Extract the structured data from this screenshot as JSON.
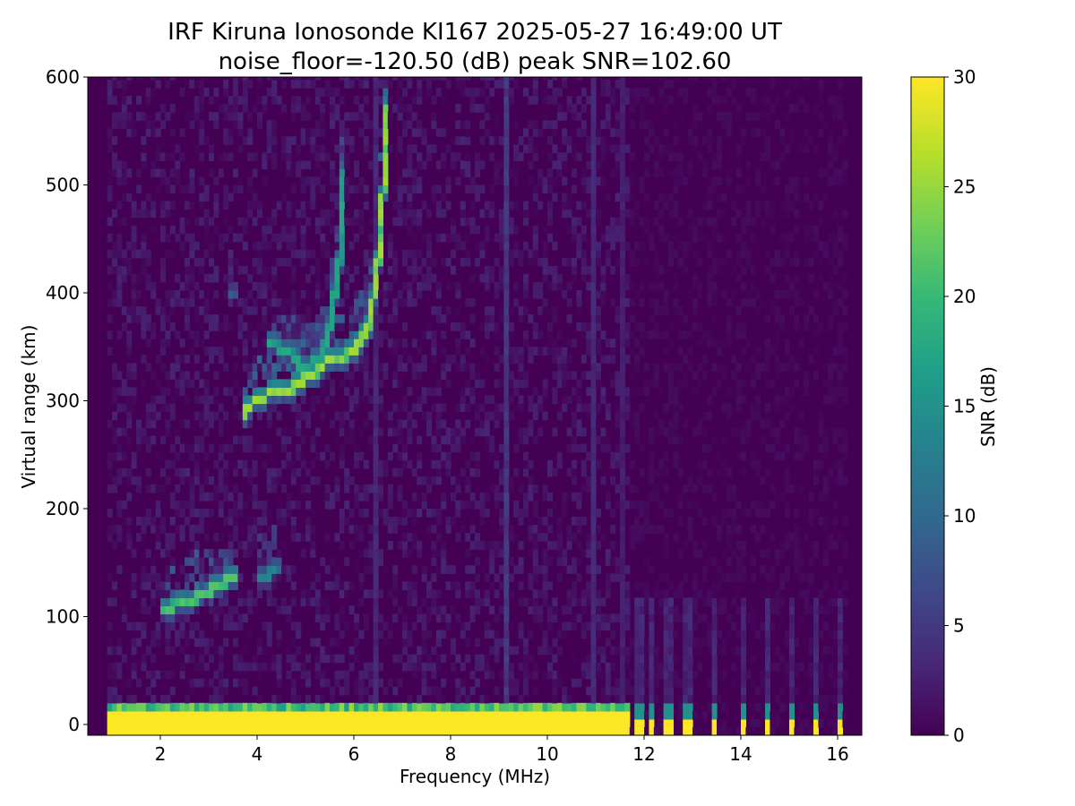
{
  "chart_data": {
    "type": "heatmap",
    "title": "IRF Kiruna Ionosonde KI167 2025-05-27 16:49:00  UT",
    "subtitle": "noise_floor=-120.50 (dB) peak SNR=102.60",
    "xlabel": "Frequency (MHz)",
    "ylabel": "Virtual range (km)",
    "xlim": [
      0.5,
      16.5
    ],
    "ylim": [
      -10,
      600
    ],
    "data_x_range": [
      0.9,
      16.2
    ],
    "x_ticks": [
      2,
      4,
      6,
      8,
      10,
      12,
      14,
      16
    ],
    "x_tick_labels": [
      "2",
      "4",
      "6",
      "8",
      "10",
      "12",
      "14",
      "16"
    ],
    "y_ticks": [
      0,
      100,
      200,
      300,
      400,
      500,
      600
    ],
    "y_tick_labels": [
      "0",
      "100",
      "200",
      "300",
      "400",
      "500",
      "600"
    ],
    "colorbar": {
      "label": "SNR (dB)",
      "range": [
        0,
        30
      ],
      "ticks": [
        0,
        5,
        10,
        15,
        20,
        25,
        30
      ],
      "tick_labels": [
        "0",
        "5",
        "10",
        "15",
        "20",
        "25",
        "30"
      ],
      "colormap": "viridis"
    },
    "colormap_stops": [
      "#440154",
      "#482878",
      "#3e4989",
      "#31688e",
      "#26828e",
      "#1f9e89",
      "#35b779",
      "#6ece58",
      "#b5de2b",
      "#fde725"
    ],
    "noise_snr_range": [
      0,
      3
    ],
    "grid": false,
    "traces": [
      {
        "name": "E-layer echo",
        "points": [
          [
            2.0,
            106
          ],
          [
            2.5,
            113
          ],
          [
            3.0,
            124
          ],
          [
            3.3,
            132
          ],
          [
            3.55,
            138
          ]
        ],
        "snr": 22
      },
      {
        "name": "E-layer echo",
        "points": [
          [
            4.0,
            135
          ],
          [
            4.4,
            142
          ]
        ],
        "snr": 14
      },
      {
        "name": "F-layer O trace",
        "points": [
          [
            3.7,
            285
          ],
          [
            4.0,
            304
          ],
          [
            4.4,
            306
          ],
          [
            4.8,
            314
          ],
          [
            5.1,
            323
          ],
          [
            5.4,
            335
          ],
          [
            5.8,
            340
          ],
          [
            6.1,
            352
          ],
          [
            6.3,
            368
          ],
          [
            6.4,
            395
          ],
          [
            6.5,
            430
          ],
          [
            6.6,
            490
          ],
          [
            6.65,
            570
          ]
        ],
        "snr": 26
      },
      {
        "name": "F-layer X trace",
        "points": [
          [
            4.2,
            352
          ],
          [
            4.6,
            348
          ],
          [
            5.0,
            330
          ],
          [
            5.3,
            340
          ],
          [
            5.5,
            365
          ],
          [
            5.6,
            395
          ],
          [
            5.7,
            430
          ],
          [
            5.75,
            470
          ],
          [
            5.8,
            510
          ]
        ],
        "snr": 18
      },
      {
        "name": "F-layer spread",
        "points": [
          [
            3.4,
            395
          ],
          [
            3.5,
            400
          ]
        ],
        "snr": 9
      }
    ],
    "ground_band": {
      "range_km": [
        -8,
        20
      ],
      "freq_mhz": [
        0.9,
        11.65
      ],
      "snr": 30
    },
    "discrete_bars": {
      "range_km": [
        -8,
        15
      ],
      "freqs_mhz": [
        11.8,
        12.0,
        12.2,
        12.4,
        12.6,
        12.8,
        13.0,
        13.5,
        14.0,
        14.5,
        15.0,
        15.5,
        16.0
      ],
      "snr": 30
    },
    "vertical_lines": [
      {
        "freq_mhz": 9.2,
        "snr": 6
      },
      {
        "freq_mhz": 6.4,
        "snr": 4
      },
      {
        "freq_mhz": 11.0,
        "snr": 4
      },
      {
        "freq_mhz": 11.55,
        "snr": 3
      },
      {
        "freq_mhz": 10.95,
        "snr": 4
      }
    ]
  }
}
